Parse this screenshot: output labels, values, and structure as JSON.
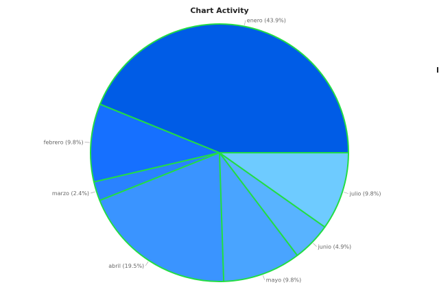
{
  "chart_data": {
    "type": "pie",
    "title": "Chart Activity",
    "slice_border_color": "#22dd44",
    "slices": [
      {
        "label": "enero",
        "value": 43.9,
        "percent_label": "enero (43.9%)",
        "color": "#005ce6"
      },
      {
        "label": "febrero",
        "value": 9.8,
        "percent_label": "febrero (9.8%)",
        "color": "#1670ff"
      },
      {
        "label": "marzo",
        "value": 2.4,
        "percent_label": "marzo (2.4%)",
        "color": "#2a82ff"
      },
      {
        "label": "abril",
        "value": 19.5,
        "percent_label": "abril (19.5%)",
        "color": "#3a94ff"
      },
      {
        "label": "mayo",
        "value": 9.8,
        "percent_label": "mayo (9.8%)",
        "color": "#49a4ff"
      },
      {
        "label": "junio",
        "value": 4.9,
        "percent_label": "junio (4.9%)",
        "color": "#58b3ff"
      },
      {
        "label": "julio",
        "value": 9.8,
        "percent_label": "julio (9.8%)",
        "color": "#6ecbff"
      }
    ]
  }
}
